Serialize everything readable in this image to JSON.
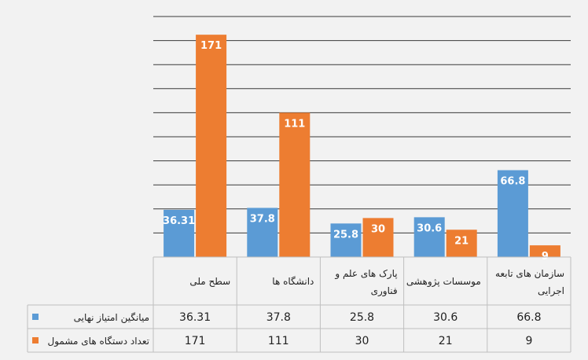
{
  "chart_data": {
    "type": "bar",
    "categories": [
      "سطح ملی",
      "دانشگاه ها",
      "پارک های علم و فناوری",
      "موسسات پژوهشی",
      "سازمان های تابعه اجرایی"
    ],
    "category_lines": [
      [
        "سطح ملی"
      ],
      [
        "دانشگاه ها"
      ],
      [
        "پارک های علم و",
        "فناوری"
      ],
      [
        "موسسات پژوهشی"
      ],
      [
        "سازمان های تابعه",
        "اجرایی"
      ]
    ],
    "series": [
      {
        "name": "میانگین امتیاز نهایی",
        "values": [
          36.31,
          37.8,
          25.8,
          30.6,
          66.8
        ],
        "labels": [
          "36.31",
          "37.8",
          "25.8",
          "30.6",
          "66.8"
        ],
        "color": "#5b9bd5"
      },
      {
        "name": "تعداد دستگاه های مشمول",
        "values": [
          171,
          111,
          30,
          21,
          9
        ],
        "labels": [
          "171",
          "111",
          "30",
          "21",
          "9"
        ],
        "color": "#ed7d31"
      }
    ],
    "ylim": [
      0,
      200
    ],
    "gridlines": true,
    "data_table": true,
    "legend": "in-table"
  }
}
